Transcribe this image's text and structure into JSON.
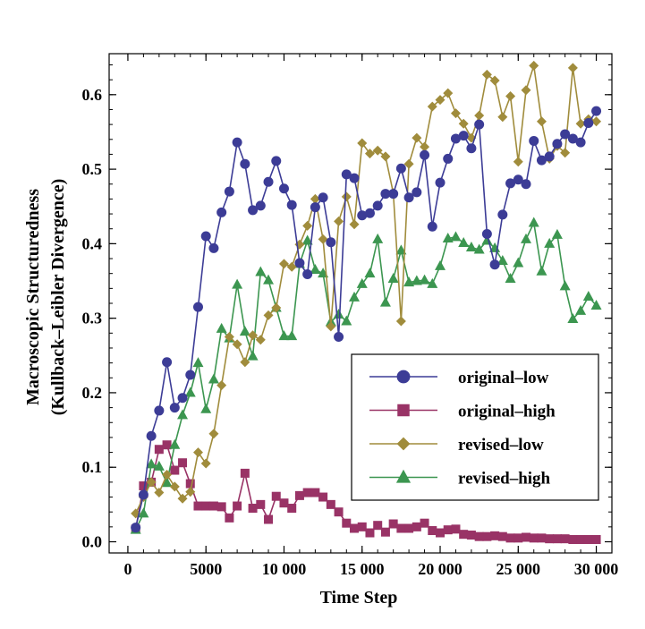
{
  "chart_data": {
    "type": "line",
    "xlabel": "Time Step",
    "ylabel_line1": "Macroscopic Structuredness",
    "ylabel_line2": "(Kullback–Leibler Divergence)",
    "xlim": [
      -1200,
      31000
    ],
    "ylim": [
      -0.015,
      0.655
    ],
    "x_ticks": [
      {
        "value": 0,
        "label": "0"
      },
      {
        "value": 5000,
        "label": "5000"
      },
      {
        "value": 10000,
        "label": "10 000"
      },
      {
        "value": 15000,
        "label": "15 000"
      },
      {
        "value": 20000,
        "label": "20 000"
      },
      {
        "value": 25000,
        "label": "25 000"
      },
      {
        "value": 30000,
        "label": "30 000"
      }
    ],
    "x_minor_step": 1000,
    "y_ticks": [
      {
        "value": 0.0,
        "label": "0.0"
      },
      {
        "value": 0.1,
        "label": "0.1"
      },
      {
        "value": 0.2,
        "label": "0.2"
      },
      {
        "value": 0.3,
        "label": "0.3"
      },
      {
        "value": 0.4,
        "label": "0.4"
      },
      {
        "value": 0.5,
        "label": "0.5"
      },
      {
        "value": 0.6,
        "label": "0.6"
      }
    ],
    "y_minor_step": 0.02,
    "legend_position": "bottom-right",
    "x": [
      500,
      1000,
      1500,
      2000,
      2500,
      3000,
      3500,
      4000,
      4500,
      5000,
      5500,
      6000,
      6500,
      7000,
      7500,
      8000,
      8500,
      9000,
      9500,
      10000,
      10500,
      11000,
      11500,
      12000,
      12500,
      13000,
      13500,
      14000,
      14500,
      15000,
      15500,
      16000,
      16500,
      17000,
      17500,
      18000,
      18500,
      19000,
      19500,
      20000,
      20500,
      21000,
      21500,
      22000,
      22500,
      23000,
      23500,
      24000,
      24500,
      25000,
      25500,
      26000,
      26500,
      27000,
      27500,
      28000,
      28500,
      29000,
      29500,
      30000
    ],
    "series": [
      {
        "name": "original–low",
        "color": "#3c3c96",
        "marker": "circle",
        "values": [
          0.019,
          0.063,
          0.142,
          0.176,
          0.241,
          0.18,
          0.193,
          0.224,
          0.315,
          0.41,
          0.394,
          0.442,
          0.47,
          0.536,
          0.507,
          0.445,
          0.451,
          0.483,
          0.511,
          0.474,
          0.452,
          0.374,
          0.359,
          0.449,
          0.462,
          0.402,
          0.275,
          0.493,
          0.488,
          0.438,
          0.441,
          0.451,
          0.467,
          0.467,
          0.501,
          0.462,
          0.469,
          0.519,
          0.423,
          0.482,
          0.514,
          0.541,
          0.545,
          0.528,
          0.56,
          0.413,
          0.372,
          0.439,
          0.481,
          0.486,
          0.48,
          0.538,
          0.512,
          0.517,
          0.534,
          0.547,
          0.541,
          0.536,
          0.562,
          0.578
        ]
      },
      {
        "name": "original–high",
        "color": "#993366",
        "marker": "square",
        "values": [
          0.017,
          0.075,
          0.08,
          0.124,
          0.13,
          0.096,
          0.106,
          0.078,
          0.048,
          0.048,
          0.048,
          0.047,
          0.032,
          0.048,
          0.092,
          0.045,
          0.05,
          0.03,
          0.061,
          0.052,
          0.045,
          0.062,
          0.066,
          0.066,
          0.06,
          0.05,
          0.04,
          0.025,
          0.018,
          0.02,
          0.012,
          0.022,
          0.013,
          0.024,
          0.018,
          0.018,
          0.02,
          0.025,
          0.015,
          0.012,
          0.016,
          0.017,
          0.01,
          0.009,
          0.007,
          0.007,
          0.008,
          0.007,
          0.005,
          0.005,
          0.006,
          0.005,
          0.005,
          0.004,
          0.004,
          0.004,
          0.003,
          0.003,
          0.003,
          0.003
        ]
      },
      {
        "name": "revised–low",
        "color": "#a08c3c",
        "marker": "diamond",
        "values": [
          0.038,
          0.06,
          0.08,
          0.066,
          0.09,
          0.074,
          0.058,
          0.067,
          0.12,
          0.105,
          0.145,
          0.21,
          0.275,
          0.265,
          0.241,
          0.277,
          0.271,
          0.304,
          0.314,
          0.373,
          0.369,
          0.399,
          0.424,
          0.46,
          0.406,
          0.289,
          0.43,
          0.463,
          0.426,
          0.535,
          0.521,
          0.525,
          0.517,
          0.468,
          0.296,
          0.507,
          0.542,
          0.53,
          0.584,
          0.593,
          0.602,
          0.575,
          0.561,
          0.542,
          0.572,
          0.627,
          0.619,
          0.57,
          0.598,
          0.51,
          0.606,
          0.639,
          0.564,
          0.514,
          0.531,
          0.522,
          0.636,
          0.561,
          0.567,
          0.564
        ]
      },
      {
        "name": "revised–high",
        "color": "#3c9650",
        "marker": "triangle",
        "values": [
          0.016,
          0.038,
          0.104,
          0.101,
          0.079,
          0.13,
          0.17,
          0.2,
          0.24,
          0.178,
          0.218,
          0.286,
          0.273,
          0.345,
          0.282,
          0.249,
          0.362,
          0.351,
          0.314,
          0.276,
          0.276,
          0.373,
          0.404,
          0.365,
          0.36,
          0.295,
          0.305,
          0.296,
          0.328,
          0.346,
          0.36,
          0.406,
          0.321,
          0.353,
          0.391,
          0.348,
          0.35,
          0.351,
          0.346,
          0.37,
          0.407,
          0.409,
          0.401,
          0.395,
          0.392,
          0.404,
          0.394,
          0.377,
          0.353,
          0.374,
          0.406,
          0.428,
          0.363,
          0.4,
          0.412,
          0.343,
          0.299,
          0.31,
          0.329,
          0.317
        ]
      }
    ]
  }
}
